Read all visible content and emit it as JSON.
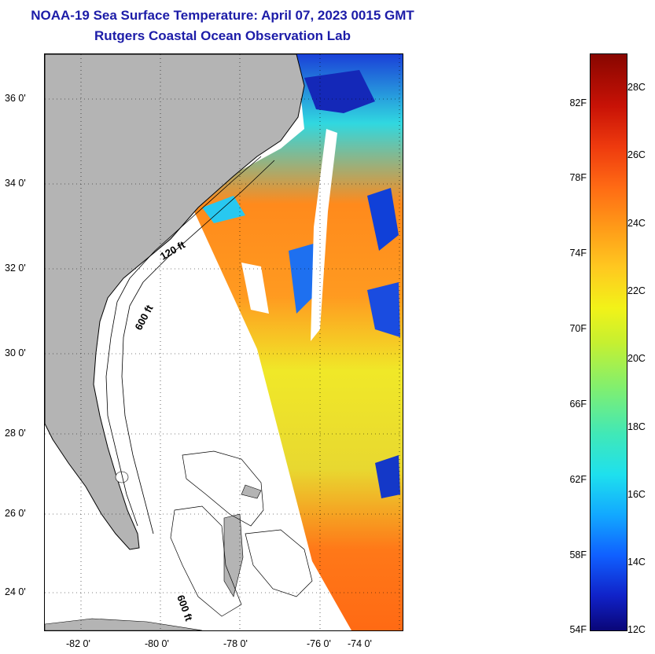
{
  "header": {
    "title": "NOAA-19 Sea Surface Temperature:  April 07, 2023 0015 GMT",
    "subtitle": "Rutgers Coastal Ocean Observation Lab"
  },
  "map": {
    "lat_labels": [
      "36 0'",
      "34 0'",
      "32 0'",
      "30 0'",
      "28 0'",
      "26 0'",
      "24 0'"
    ],
    "lon_labels": [
      "-82 0'",
      "-80 0'",
      "-78 0'",
      "-76 0'",
      "-74 0'"
    ],
    "contour_labels": [
      "120 ft",
      "600 ft",
      "600 ft"
    ],
    "land_color": "#b4b4b4",
    "no_data_color": "#ffffff"
  },
  "colorbar": {
    "fahrenheit": [
      "82F",
      "78F",
      "74F",
      "70F",
      "66F",
      "62F",
      "58F",
      "54F"
    ],
    "celsius": [
      "28C",
      "26C",
      "24C",
      "22C",
      "20C",
      "18C",
      "16C",
      "14C",
      "12C"
    ]
  }
}
